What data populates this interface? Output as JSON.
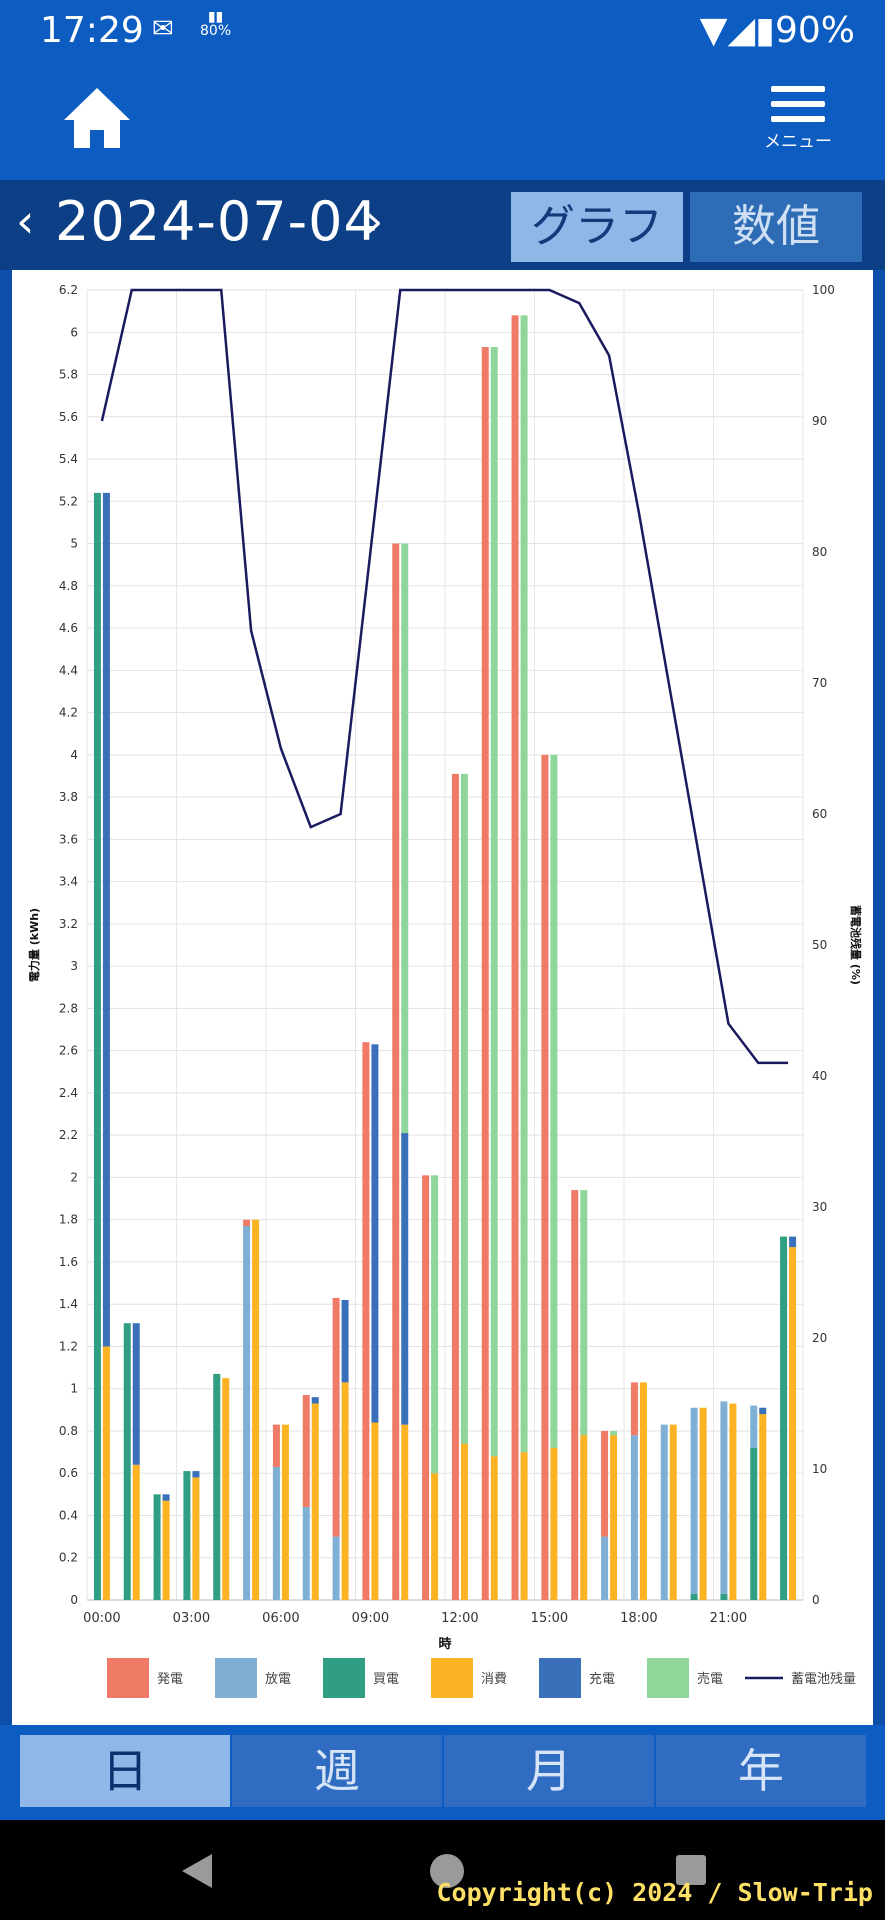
{
  "status": {
    "time": "17:29",
    "battery_small": "80%",
    "battery": "90%"
  },
  "appbar": {
    "menu_label": "メニュー"
  },
  "datebar": {
    "prev": "‹",
    "date": "2024-07-04",
    "next": "›",
    "tab_graph": "グラフ",
    "tab_values": "数値"
  },
  "bottom_tabs": [
    "日",
    "週",
    "月",
    "年"
  ],
  "footer": {
    "copyright": "Copyright(c) 2024 / Slow-Trip"
  },
  "colors": {
    "発電": "#ef7a66",
    "放電": "#7fafd4",
    "買電": "#2f9e83",
    "消費": "#fbb324",
    "充電": "#3a6fba",
    "売電": "#90d69a",
    "line": "#1a1a5e"
  },
  "chart_data": {
    "type": "bar",
    "xlabel": "時",
    "ylabel": "電力量 (kWh)",
    "y2label": "蓄電池残量 (%)",
    "ylim": [
      0,
      6.2
    ],
    "y2lim": [
      0,
      100
    ],
    "yticks": [
      "0",
      "0.2",
      "0.4",
      "0.6",
      "0.8",
      "1",
      "1.2",
      "1.4",
      "1.6",
      "1.8",
      "2",
      "2.2",
      "2.4",
      "2.6",
      "2.8",
      "3",
      "3.2",
      "3.4",
      "3.6",
      "3.8",
      "4",
      "4.2",
      "4.4",
      "4.6",
      "4.8",
      "5",
      "5.2",
      "5.4",
      "5.6",
      "5.8",
      "6",
      "6.2"
    ],
    "y2ticks": [
      "0",
      "10",
      "20",
      "30",
      "40",
      "50",
      "60",
      "70",
      "80",
      "90",
      "100"
    ],
    "xticks": [
      "00:00",
      "03:00",
      "06:00",
      "09:00",
      "12:00",
      "15:00",
      "18:00",
      "21:00"
    ],
    "legend": [
      "発電",
      "放電",
      "買電",
      "消費",
      "充電",
      "売電",
      "蓄電池残量"
    ],
    "hours": [
      0,
      1,
      2,
      3,
      4,
      5,
      6,
      7,
      8,
      9,
      10,
      11,
      12,
      13,
      14,
      15,
      16,
      17,
      18,
      19,
      20,
      21,
      22,
      23
    ],
    "supply": [
      {
        "発電": 0,
        "放電": 0,
        "買電": 5.24
      },
      {
        "発電": 0,
        "放電": 0,
        "買電": 1.31
      },
      {
        "発電": 0,
        "放電": 0,
        "買電": 0.5
      },
      {
        "発電": 0,
        "放電": 0,
        "買電": 0.61
      },
      {
        "発電": 0,
        "放電": 0,
        "買電": 1.07
      },
      {
        "発電": 0.03,
        "放電": 1.77,
        "買電": 0
      },
      {
        "発電": 0.2,
        "放電": 0.63,
        "買電": 0
      },
      {
        "発電": 0.53,
        "放電": 0.44,
        "買電": 0
      },
      {
        "発電": 1.13,
        "放電": 0.3,
        "買電": 0
      },
      {
        "発電": 2.64,
        "放電": 0,
        "買電": 0
      },
      {
        "発電": 5.0,
        "放電": 0,
        "買電": 0
      },
      {
        "発電": 2.01,
        "放電": 0,
        "買電": 0
      },
      {
        "発電": 3.91,
        "放電": 0,
        "買電": 0
      },
      {
        "発電": 5.93,
        "放電": 0,
        "買電": 0
      },
      {
        "発電": 6.08,
        "放電": 0,
        "買電": 0
      },
      {
        "発電": 4.0,
        "放電": 0,
        "買電": 0
      },
      {
        "発電": 1.94,
        "放電": 0,
        "買電": 0
      },
      {
        "発電": 0.5,
        "放電": 0.3,
        "買電": 0
      },
      {
        "発電": 0.25,
        "放電": 0.78,
        "買電": 0
      },
      {
        "発電": 0,
        "放電": 0.83,
        "買電": 0
      },
      {
        "発電": 0,
        "放電": 0.88,
        "買電": 0.03
      },
      {
        "発電": 0,
        "放電": 0.91,
        "買電": 0.03
      },
      {
        "発電": 0,
        "放電": 0.2,
        "買電": 0.72
      },
      {
        "発電": 0,
        "放電": 0,
        "買電": 1.72
      }
    ],
    "use": [
      {
        "消費": 1.2,
        "充電": 4.04,
        "売電": 0
      },
      {
        "消費": 0.64,
        "充電": 0.67,
        "売電": 0
      },
      {
        "消費": 0.47,
        "充電": 0.03,
        "売電": 0
      },
      {
        "消費": 0.58,
        "充電": 0.03,
        "売電": 0
      },
      {
        "消費": 1.05,
        "充電": 0,
        "売電": 0
      },
      {
        "消費": 1.8,
        "充電": 0,
        "売電": 0
      },
      {
        "消費": 0.83,
        "充電": 0,
        "売電": 0
      },
      {
        "消費": 0.93,
        "充電": 0.03,
        "売電": 0
      },
      {
        "消費": 1.03,
        "充電": 0.39,
        "売電": 0
      },
      {
        "消費": 0.84,
        "充電": 1.79,
        "売電": 0
      },
      {
        "消費": 0.83,
        "充電": 1.38,
        "売電": 2.79
      },
      {
        "消費": 0.6,
        "充電": 0,
        "売電": 1.41
      },
      {
        "消費": 0.74,
        "充電": 0,
        "売電": 3.17
      },
      {
        "消費": 0.68,
        "充電": 0,
        "売電": 5.25
      },
      {
        "消費": 0.7,
        "充電": 0,
        "売電": 5.38
      },
      {
        "消費": 0.72,
        "充電": 0,
        "売電": 3.28
      },
      {
        "消費": 0.78,
        "充電": 0,
        "売電": 1.16
      },
      {
        "消費": 0.78,
        "充電": 0,
        "売電": 0.02
      },
      {
        "消費": 1.03,
        "充電": 0,
        "売電": 0
      },
      {
        "消費": 0.83,
        "充電": 0,
        "売電": 0
      },
      {
        "消費": 0.91,
        "充電": 0,
        "売電": 0
      },
      {
        "消費": 0.93,
        "充電": 0,
        "売電": 0
      },
      {
        "消費": 0.88,
        "充電": 0.03,
        "売電": 0
      },
      {
        "消費": 1.67,
        "充電": 0.05,
        "売電": 0
      }
    ],
    "battery_line": [
      [
        0,
        90
      ],
      [
        1,
        100
      ],
      [
        2,
        100
      ],
      [
        3,
        100
      ],
      [
        4,
        100
      ],
      [
        5,
        74
      ],
      [
        6,
        65
      ],
      [
        7,
        59
      ],
      [
        8,
        60
      ],
      [
        9,
        80
      ],
      [
        10,
        100
      ],
      [
        11,
        100
      ],
      [
        12,
        100
      ],
      [
        13,
        100
      ],
      [
        14,
        100
      ],
      [
        15,
        100
      ],
      [
        16,
        99
      ],
      [
        17,
        95
      ],
      [
        18,
        83
      ],
      [
        19,
        70
      ],
      [
        20,
        57
      ],
      [
        21,
        44
      ],
      [
        22,
        41
      ],
      [
        23,
        41
      ]
    ]
  }
}
